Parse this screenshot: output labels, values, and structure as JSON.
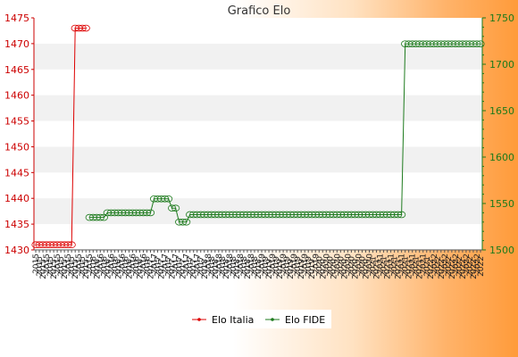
{
  "chart_data": {
    "type": "line",
    "title": "Grafico Elo",
    "legend": {
      "placement": "bottom-center"
    },
    "grid": true,
    "y_left": {
      "series": "Elo Italia",
      "ylim": [
        1430,
        1475
      ],
      "ticks": [
        1430,
        1435,
        1440,
        1445,
        1450,
        1455,
        1460,
        1465,
        1470,
        1475
      ],
      "color": "#dd0000"
    },
    "y_right": {
      "series": "Elo FIDE",
      "ylim": [
        1500,
        1750
      ],
      "ticks": [
        1500,
        1550,
        1600,
        1650,
        1700,
        1750
      ],
      "color": "#1e7b1e"
    },
    "x_tick_labels_visible": [
      "2015",
      "2016",
      "2017",
      "2018",
      "2019",
      "2020",
      "2021",
      "2022"
    ],
    "series": [
      {
        "name": "Elo Italia",
        "axis": "left",
        "color": "#dd0000",
        "points": [
          [
            0,
            1431
          ],
          [
            10,
            1431
          ],
          [
            11,
            1473
          ],
          [
            14,
            1473
          ]
        ]
      },
      {
        "name": "Elo FIDE",
        "axis": "right",
        "color": "#1e7b1e",
        "points": [
          [
            15,
            1535
          ],
          [
            19,
            1535
          ],
          [
            20,
            1540
          ],
          [
            32,
            1540
          ],
          [
            33,
            1555
          ],
          [
            37,
            1555
          ],
          [
            38,
            1545
          ],
          [
            39,
            1545
          ],
          [
            40,
            1530
          ],
          [
            42,
            1530
          ],
          [
            43,
            1538
          ],
          [
            102,
            1538
          ],
          [
            103,
            1722
          ],
          [
            124,
            1722
          ]
        ]
      }
    ]
  }
}
